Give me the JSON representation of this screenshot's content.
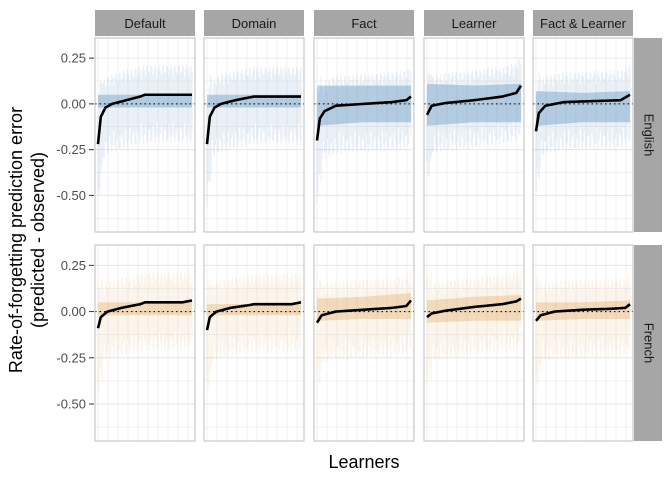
{
  "chart_data": {
    "type": "line",
    "facet_columns": [
      "Default",
      "Domain",
      "Fact",
      "Learner",
      "Fact & Learner"
    ],
    "facet_rows": [
      "English",
      "French"
    ],
    "ylabel_line1": "Rate-of-forgetting prediction error",
    "ylabel_line2": "(predicted - observed)",
    "xlabel": "Learners",
    "ylim": [
      -0.7,
      0.36
    ],
    "y_ticks": [
      -0.5,
      -0.25,
      0.0,
      0.25
    ],
    "y_tick_labels": [
      "-0.50",
      "-0.25",
      "0.00",
      "0.25"
    ],
    "reference_line": 0,
    "grid": true,
    "colors": {
      "English": "#4a86b8",
      "French": "#e0a75e",
      "median_line": "#000000",
      "strip": "#a6a6a6",
      "grid": "#e6e6e6",
      "panel_border": "#bdbdbd"
    },
    "panels": [
      {
        "row": "English",
        "col": "Default",
        "curve": [
          [
            0,
            -0.22
          ],
          [
            0.03,
            -0.07
          ],
          [
            0.08,
            -0.02
          ],
          [
            0.15,
            0.0
          ],
          [
            0.3,
            0.02
          ],
          [
            0.45,
            0.04
          ],
          [
            0.5,
            0.05
          ],
          [
            1,
            0.05
          ]
        ],
        "band": [
          [
            0,
            -0.02,
            0.05
          ],
          [
            0.5,
            -0.02,
            0.05
          ],
          [
            1,
            -0.02,
            0.05
          ]
        ]
      },
      {
        "row": "English",
        "col": "Domain",
        "curve": [
          [
            0,
            -0.22
          ],
          [
            0.03,
            -0.07
          ],
          [
            0.08,
            -0.02
          ],
          [
            0.15,
            0.0
          ],
          [
            0.3,
            0.02
          ],
          [
            0.45,
            0.035
          ],
          [
            0.5,
            0.04
          ],
          [
            1,
            0.04
          ]
        ],
        "band": [
          [
            0,
            -0.02,
            0.05
          ],
          [
            0.5,
            -0.02,
            0.05
          ],
          [
            1,
            -0.02,
            0.05
          ]
        ]
      },
      {
        "row": "English",
        "col": "Fact",
        "curve": [
          [
            0,
            -0.2
          ],
          [
            0.03,
            -0.08
          ],
          [
            0.08,
            -0.04
          ],
          [
            0.2,
            -0.01
          ],
          [
            0.5,
            0.0
          ],
          [
            0.8,
            0.01
          ],
          [
            0.95,
            0.02
          ],
          [
            1,
            0.04
          ]
        ],
        "band": [
          [
            0,
            -0.12,
            0.1
          ],
          [
            0.5,
            -0.1,
            0.1
          ],
          [
            1,
            -0.1,
            0.1
          ]
        ]
      },
      {
        "row": "English",
        "col": "Learner",
        "curve": [
          [
            0,
            -0.06
          ],
          [
            0.05,
            -0.01
          ],
          [
            0.2,
            0.005
          ],
          [
            0.5,
            0.02
          ],
          [
            0.8,
            0.04
          ],
          [
            0.95,
            0.06
          ],
          [
            1,
            0.1
          ]
        ],
        "band": [
          [
            0,
            -0.12,
            0.11
          ],
          [
            0.5,
            -0.1,
            0.1
          ],
          [
            1,
            -0.1,
            0.11
          ]
        ]
      },
      {
        "row": "English",
        "col": "Fact & Learner",
        "curve": [
          [
            0,
            -0.15
          ],
          [
            0.03,
            -0.05
          ],
          [
            0.1,
            -0.01
          ],
          [
            0.3,
            0.01
          ],
          [
            0.6,
            0.015
          ],
          [
            0.9,
            0.02
          ],
          [
            1,
            0.05
          ]
        ],
        "band": [
          [
            0,
            -0.12,
            0.07
          ],
          [
            0.5,
            -0.1,
            0.06
          ],
          [
            1,
            -0.1,
            0.07
          ]
        ]
      },
      {
        "row": "French",
        "col": "Default",
        "curve": [
          [
            0,
            -0.09
          ],
          [
            0.03,
            -0.03
          ],
          [
            0.1,
            0.0
          ],
          [
            0.25,
            0.02
          ],
          [
            0.45,
            0.04
          ],
          [
            0.5,
            0.05
          ],
          [
            0.9,
            0.05
          ],
          [
            1,
            0.06
          ]
        ],
        "band": [
          [
            0,
            -0.02,
            0.05
          ],
          [
            0.5,
            -0.02,
            0.05
          ],
          [
            1,
            -0.02,
            0.05
          ]
        ]
      },
      {
        "row": "French",
        "col": "Domain",
        "curve": [
          [
            0,
            -0.1
          ],
          [
            0.03,
            -0.03
          ],
          [
            0.1,
            0.0
          ],
          [
            0.25,
            0.02
          ],
          [
            0.45,
            0.035
          ],
          [
            0.5,
            0.04
          ],
          [
            0.9,
            0.04
          ],
          [
            1,
            0.05
          ]
        ],
        "band": [
          [
            0,
            -0.02,
            0.04
          ],
          [
            0.5,
            -0.02,
            0.04
          ],
          [
            1,
            -0.02,
            0.04
          ]
        ]
      },
      {
        "row": "French",
        "col": "Fact",
        "curve": [
          [
            0,
            -0.06
          ],
          [
            0.05,
            -0.02
          ],
          [
            0.2,
            0.0
          ],
          [
            0.5,
            0.01
          ],
          [
            0.8,
            0.02
          ],
          [
            0.95,
            0.03
          ],
          [
            1,
            0.06
          ]
        ],
        "band": [
          [
            0,
            -0.05,
            0.07
          ],
          [
            0.5,
            -0.04,
            0.08
          ],
          [
            1,
            -0.04,
            0.1
          ]
        ]
      },
      {
        "row": "French",
        "col": "Learner",
        "curve": [
          [
            0,
            -0.03
          ],
          [
            0.05,
            -0.01
          ],
          [
            0.2,
            0.005
          ],
          [
            0.5,
            0.025
          ],
          [
            0.8,
            0.04
          ],
          [
            0.95,
            0.055
          ],
          [
            1,
            0.07
          ]
        ],
        "band": [
          [
            0,
            -0.06,
            0.06
          ],
          [
            0.5,
            -0.05,
            0.08
          ],
          [
            1,
            -0.05,
            0.09
          ]
        ]
      },
      {
        "row": "French",
        "col": "Fact & Learner",
        "curve": [
          [
            0,
            -0.05
          ],
          [
            0.05,
            -0.02
          ],
          [
            0.2,
            0.0
          ],
          [
            0.5,
            0.01
          ],
          [
            0.8,
            0.015
          ],
          [
            0.95,
            0.02
          ],
          [
            1,
            0.04
          ]
        ],
        "band": [
          [
            0,
            -0.05,
            0.05
          ],
          [
            0.5,
            -0.04,
            0.05
          ],
          [
            1,
            -0.04,
            0.06
          ]
        ]
      }
    ]
  }
}
